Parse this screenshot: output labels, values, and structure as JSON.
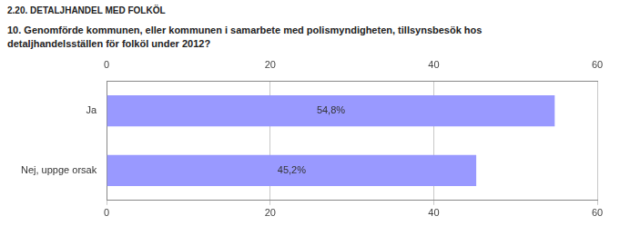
{
  "chart_data": {
    "type": "bar",
    "orientation": "horizontal",
    "title": "2.20. DETALJHANDEL MED FOLKÖL",
    "subtitle": "10. Genomförde kommunen, eller kommunen i samarbete med polismyndigheten, tillsynsbesök hos detaljhandelsställen för folköl under 2012?",
    "categories": [
      "Ja",
      "Nej, uppge orsak"
    ],
    "values": [
      54.8,
      45.2
    ],
    "value_labels": [
      "54,8%",
      "45,2%"
    ],
    "data_labels": true,
    "color": "#9999ff",
    "xlim": [
      0,
      60
    ],
    "xticks": [
      0,
      20,
      40,
      60
    ],
    "grid": true
  }
}
